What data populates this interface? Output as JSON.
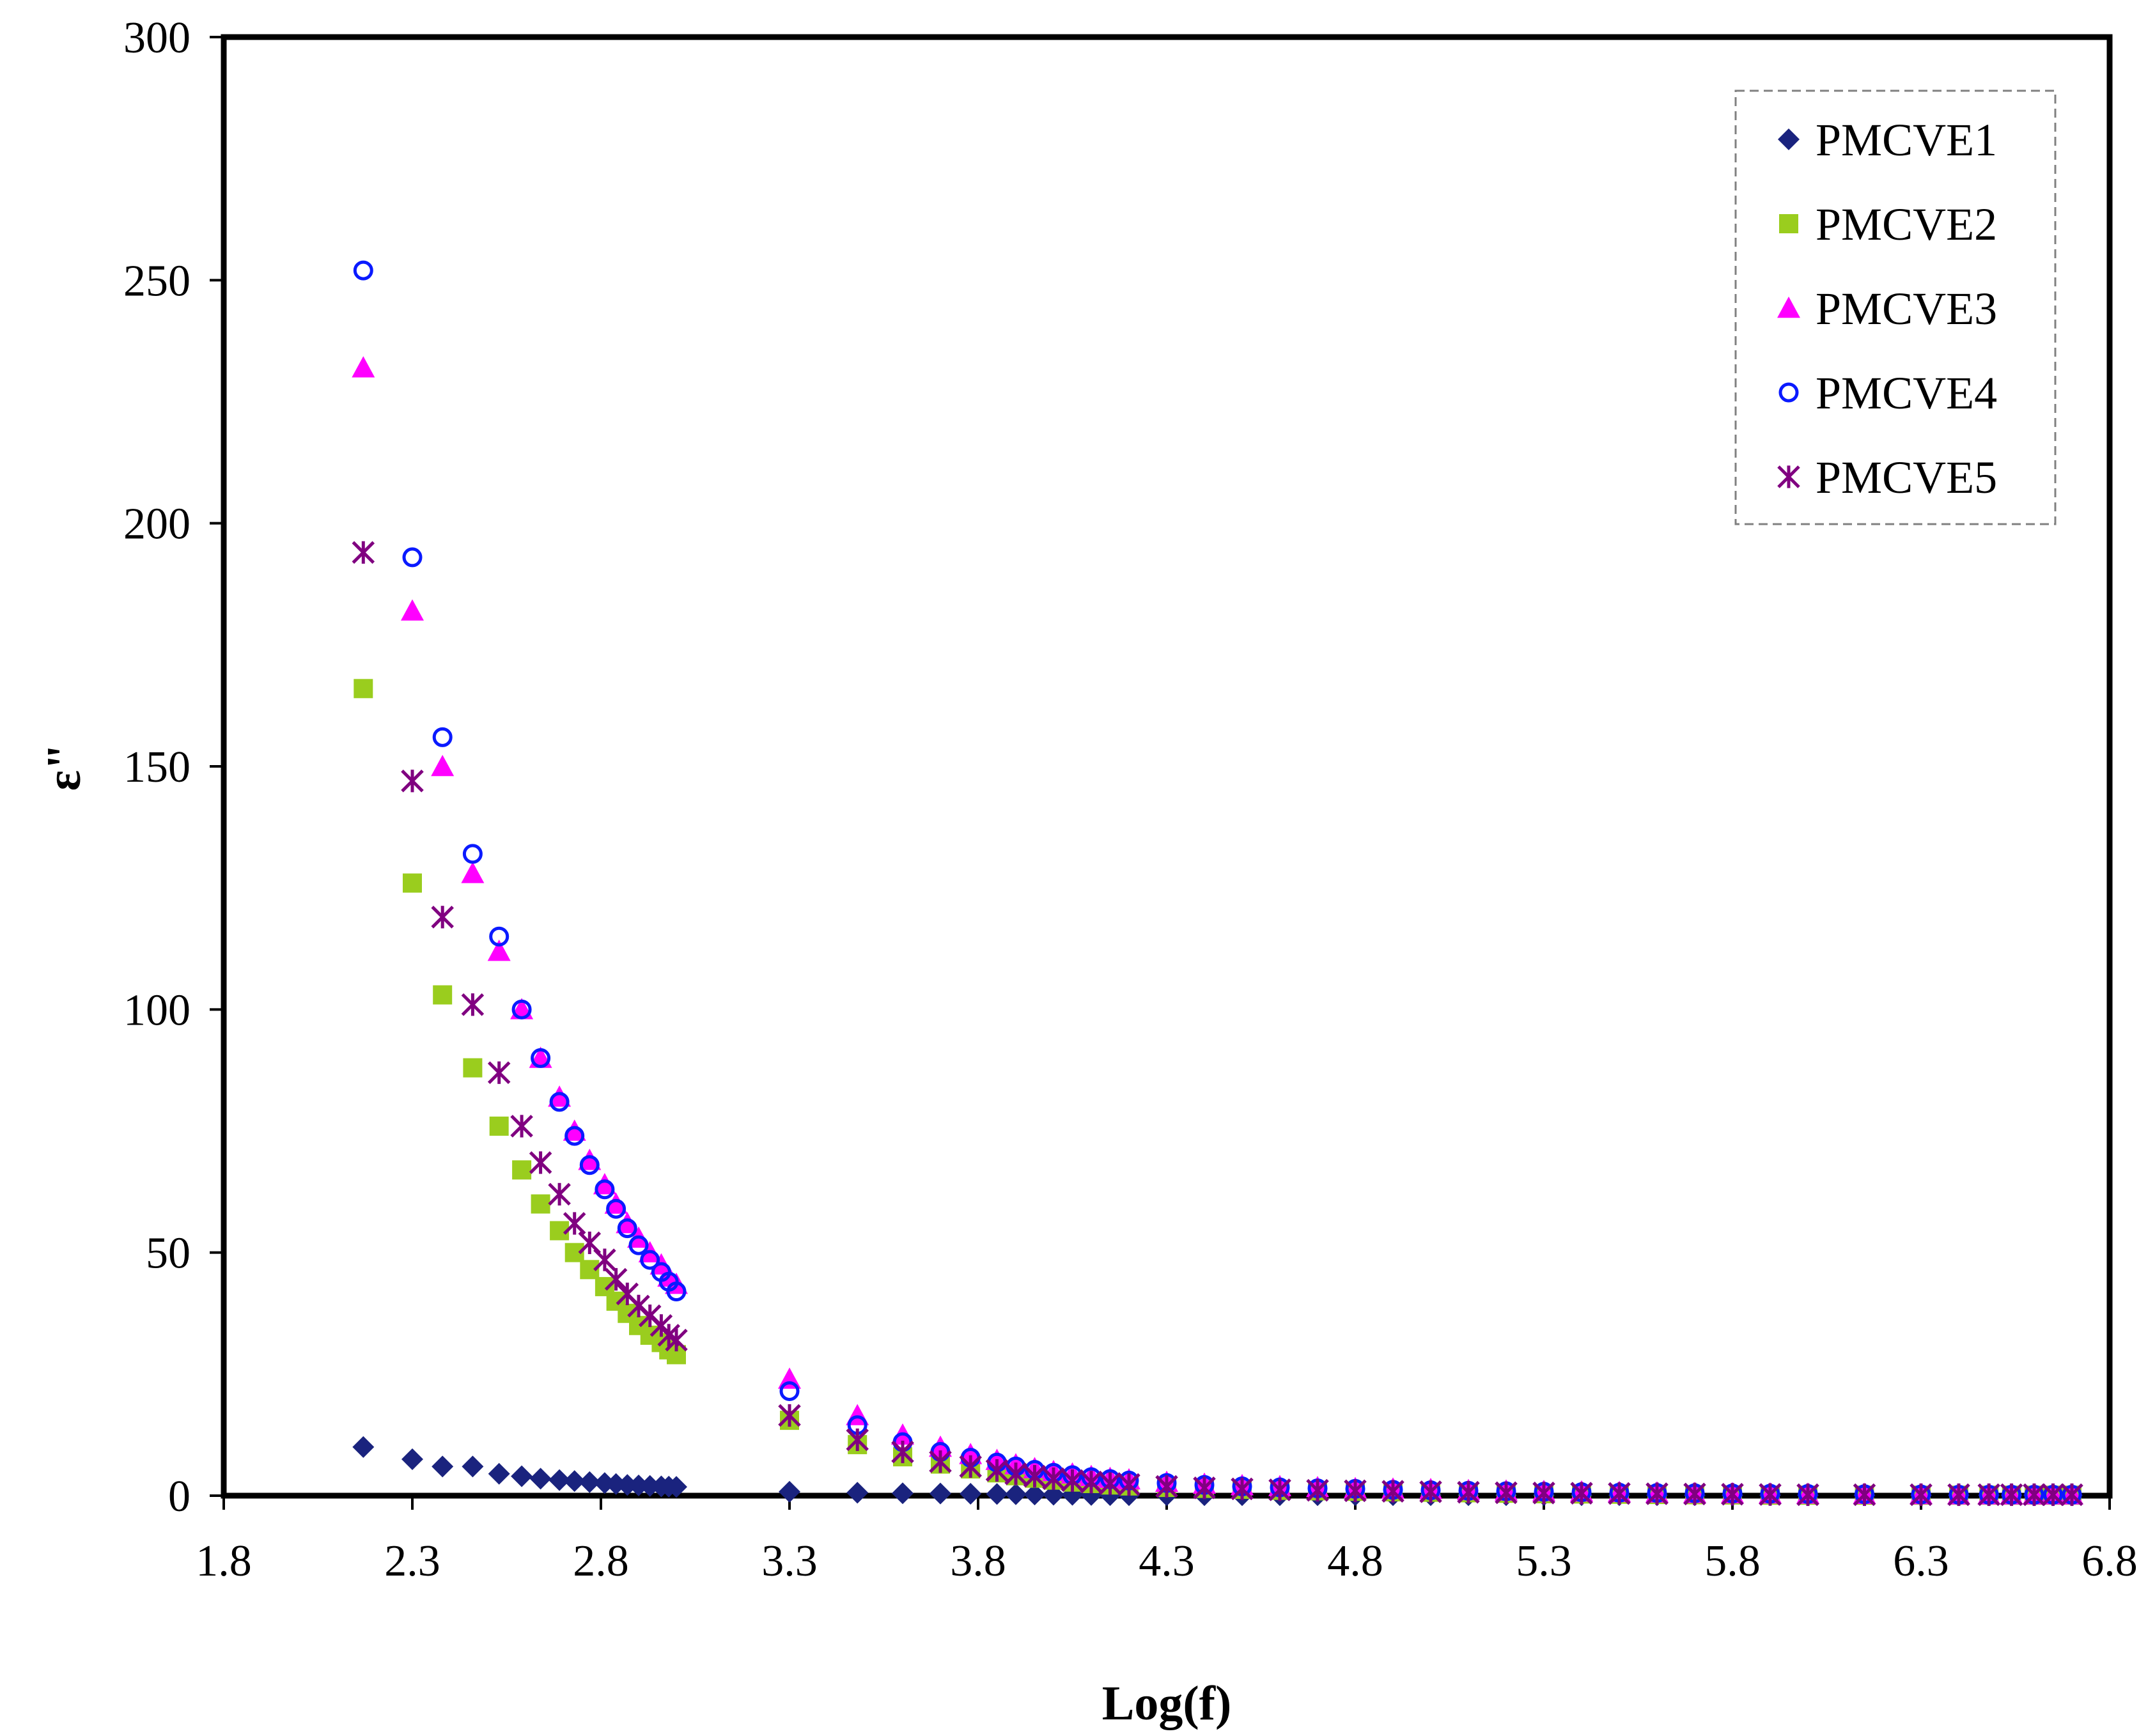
{
  "chart_data": {
    "type": "scatter",
    "title": "",
    "xlabel": "Log(f)",
    "ylabel": "ε\"",
    "xlim": [
      1.8,
      6.8
    ],
    "ylim": [
      0,
      300
    ],
    "xticks": [
      1.8,
      2.3,
      2.8,
      3.3,
      3.8,
      4.3,
      4.8,
      5.3,
      5.8,
      6.3,
      6.8
    ],
    "xtick_labels": [
      "1.8",
      "2.3",
      "2.8",
      "3.3",
      "3.8",
      "4.3",
      "4.8",
      "5.3",
      "5.8",
      "6.3",
      "6.8"
    ],
    "yticks": [
      0,
      50,
      100,
      150,
      200,
      250,
      300
    ],
    "ytick_labels": [
      "0",
      "50",
      "100",
      "150",
      "200",
      "250",
      "300"
    ],
    "grid": false,
    "legend_position": "top-right",
    "x": [
      2.17,
      2.3,
      2.38,
      2.46,
      2.53,
      2.59,
      2.64,
      2.69,
      2.73,
      2.77,
      2.81,
      2.84,
      2.87,
      2.9,
      2.93,
      2.96,
      2.98,
      3.0,
      3.3,
      3.48,
      3.6,
      3.7,
      3.78,
      3.85,
      3.9,
      3.95,
      4.0,
      4.05,
      4.1,
      4.15,
      4.2,
      4.3,
      4.4,
      4.5,
      4.6,
      4.7,
      4.8,
      4.9,
      5.0,
      5.1,
      5.2,
      5.3,
      5.4,
      5.5,
      5.6,
      5.7,
      5.8,
      5.9,
      6.0,
      6.15,
      6.3,
      6.4,
      6.48,
      6.54,
      6.6,
      6.65,
      6.7
    ],
    "series": [
      {
        "name": "PMCVE1",
        "color": "#1a237e",
        "marker": "diamond",
        "values": [
          10,
          7.5,
          6,
          6,
          4.5,
          4,
          3.5,
          3.2,
          3,
          2.8,
          2.6,
          2.4,
          2.2,
          2.1,
          2,
          1.9,
          1.85,
          1.8,
          0.8,
          0.6,
          0.5,
          0.45,
          0.4,
          0.35,
          0.3,
          0.25,
          0.2,
          0.18,
          0.15,
          0.12,
          0.1,
          0.1,
          0.1,
          0.1,
          0.1,
          0.1,
          0.1,
          0.1,
          0.1,
          0.1,
          0.1,
          0.1,
          0.1,
          0.1,
          0.1,
          0.1,
          0.1,
          0.1,
          0.1,
          0.1,
          0.1,
          0.1,
          0.1,
          0.1,
          0.1,
          0.1,
          0.1
        ]
      },
      {
        "name": "PMCVE2",
        "color": "#9acd1e",
        "marker": "square",
        "values": [
          166,
          126,
          103,
          88,
          76,
          67,
          60,
          54.5,
          50,
          46.5,
          43,
          40,
          37.5,
          35,
          33,
          31.5,
          30,
          29,
          15.5,
          10.5,
          8,
          6.5,
          5.5,
          4.7,
          4.1,
          3.6,
          3.2,
          2.8,
          2.5,
          2.2,
          2.0,
          1.7,
          1.5,
          1.3,
          1.1,
          1.0,
          0.9,
          0.8,
          0.7,
          0.6,
          0.5,
          0.4,
          0.35,
          0.3,
          0.25,
          0.2,
          0.15,
          0.1,
          0.1,
          0.1,
          0.1,
          0.1,
          0.1,
          0.1,
          0.1,
          0.1,
          0.1
        ]
      },
      {
        "name": "PMCVE3",
        "color": "#ff00ff",
        "marker": "triangle",
        "values": [
          232,
          182,
          150,
          128,
          112,
          100,
          90,
          82,
          75,
          69,
          64,
          60,
          56,
          53,
          50,
          47.5,
          45,
          43.5,
          24,
          16.5,
          12.5,
          10,
          8.5,
          7.3,
          6.4,
          5.6,
          5.0,
          4.5,
          4.0,
          3.6,
          3.3,
          2.8,
          2.4,
          2.1,
          1.9,
          1.7,
          1.5,
          1.4,
          1.3,
          1.1,
          1.0,
          0.9,
          0.8,
          0.7,
          0.6,
          0.5,
          0.45,
          0.4,
          0.35,
          0.3,
          0.25,
          0.2,
          0.2,
          0.2,
          0.2,
          0.2,
          0.2
        ]
      },
      {
        "name": "PMCVE4",
        "color": "#0a1aff",
        "marker": "circle",
        "values": [
          252,
          193,
          156,
          132,
          115,
          100,
          90,
          81,
          74,
          68,
          63,
          59,
          55,
          51.5,
          48.5,
          46,
          44,
          42,
          21.5,
          14.5,
          11,
          9,
          7.8,
          6.8,
          6.0,
          5.3,
          4.7,
          4.2,
          3.8,
          3.4,
          3.1,
          2.6,
          2.2,
          1.9,
          1.7,
          1.5,
          1.4,
          1.2,
          1.1,
          1.0,
          0.9,
          0.8,
          0.7,
          0.6,
          0.55,
          0.5,
          0.45,
          0.4,
          0.35,
          0.3,
          0.25,
          0.2,
          0.2,
          0.2,
          0.2,
          0.2,
          0.2
        ]
      },
      {
        "name": "PMCVE5",
        "color": "#800080",
        "marker": "star",
        "values": [
          194,
          147,
          119,
          101,
          87,
          76,
          68.5,
          62,
          56,
          52,
          48.5,
          44.5,
          41.5,
          39,
          37,
          35,
          33,
          32,
          16.5,
          11.5,
          9,
          7,
          6,
          5.2,
          4.5,
          4.0,
          3.5,
          3.1,
          2.8,
          2.5,
          2.3,
          1.9,
          1.6,
          1.4,
          1.2,
          1.1,
          1.0,
          0.9,
          0.8,
          0.7,
          0.6,
          0.55,
          0.5,
          0.45,
          0.4,
          0.35,
          0.3,
          0.25,
          0.2,
          0.2,
          0.2,
          0.2,
          0.2,
          0.2,
          0.2,
          0.2,
          0.2
        ]
      }
    ]
  }
}
